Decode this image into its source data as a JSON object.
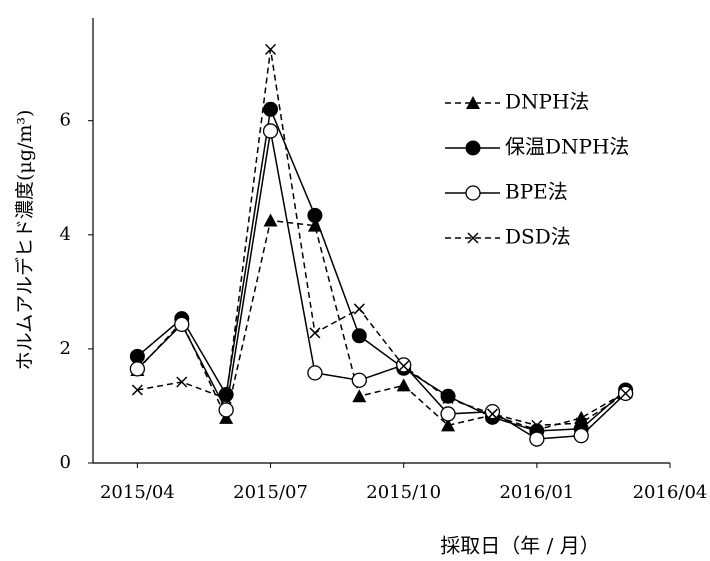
{
  "chart_data": {
    "type": "line",
    "ylabel": "ホルムアルデヒド濃度(μg/m³)",
    "xlabel": "採取日（年 / 月）",
    "x": [
      "2015-04",
      "2015-05",
      "2015-06",
      "2015-07",
      "2015-08",
      "2015-09",
      "2015-10",
      "2015-11",
      "2015-12",
      "2016-01",
      "2016-02",
      "2016-03"
    ],
    "xlim": [
      "2015-03",
      "2016-04"
    ],
    "xticks": [
      {
        "value": "2015-04",
        "label": "2015/04"
      },
      {
        "value": "2015-07",
        "label": "2015/07"
      },
      {
        "value": "2015-10",
        "label": "2015/10"
      },
      {
        "value": "2016-01",
        "label": "2016/01"
      },
      {
        "value": "2016-04",
        "label": "2016/04"
      }
    ],
    "ylim": [
      0,
      7.8
    ],
    "yticks": [
      0,
      2,
      4,
      6
    ],
    "grid": false,
    "legend": "upper right",
    "series": [
      {
        "name": "DNPH法",
        "color": "#000000",
        "marker": "triangle",
        "dash": true,
        "values": [
          1.63,
          2.47,
          0.79,
          4.25,
          4.16,
          1.17,
          1.36,
          0.66,
          0.84,
          0.58,
          0.79,
          1.24
        ]
      },
      {
        "name": "保温DNPH法",
        "color": "#000000",
        "marker": "filled-circle",
        "dash": false,
        "values": [
          1.87,
          2.53,
          1.2,
          6.2,
          4.34,
          2.23,
          1.66,
          1.17,
          0.8,
          0.56,
          0.6,
          1.28
        ]
      },
      {
        "name": "BPE法",
        "color": "#000000",
        "marker": "open-circle",
        "dash": false,
        "values": [
          1.65,
          2.43,
          0.93,
          5.82,
          1.58,
          1.45,
          1.72,
          0.86,
          0.9,
          0.42,
          0.48,
          1.22
        ]
      },
      {
        "name": "DSD法",
        "color": "#000000",
        "marker": "cross",
        "dash": true,
        "values": [
          1.28,
          1.42,
          1.13,
          7.25,
          2.28,
          2.7,
          1.7,
          1.13,
          0.86,
          0.66,
          0.7,
          1.22
        ]
      }
    ]
  }
}
